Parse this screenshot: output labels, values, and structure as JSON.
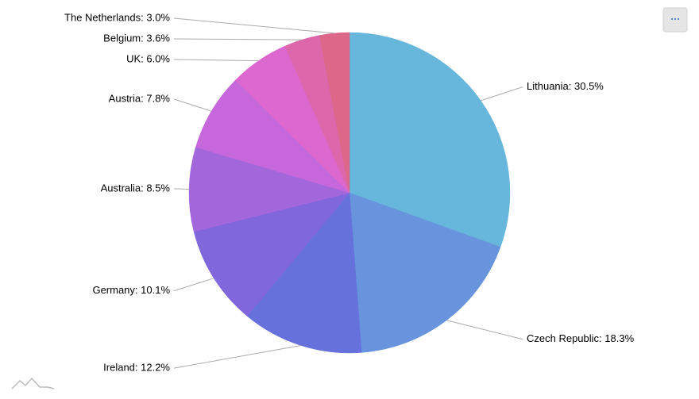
{
  "chart_data": {
    "type": "pie",
    "categories": [
      "Lithuania",
      "Czech Republic",
      "Ireland",
      "Germany",
      "Australia",
      "Austria",
      "UK",
      "Belgium",
      "The Netherlands"
    ],
    "values": [
      30.5,
      18.3,
      12.2,
      10.1,
      8.5,
      7.8,
      6.0,
      3.6,
      3.0
    ],
    "value_labels": [
      "Lithuania: 30.5%",
      "Czech Republic: 18.3%",
      "Ireland: 12.2%",
      "Germany: 10.1%",
      "Australia: 8.5%",
      "Austria: 7.8%",
      "UK: 6.0%",
      "Belgium: 3.6%",
      "The Netherlands: 3.0%"
    ],
    "colors": [
      "#67b7dc",
      "#6794dc",
      "#6771dc",
      "#8067dc",
      "#a367dc",
      "#c767dc",
      "#dc67ce",
      "#dc67ab",
      "#dc6788"
    ]
  }
}
